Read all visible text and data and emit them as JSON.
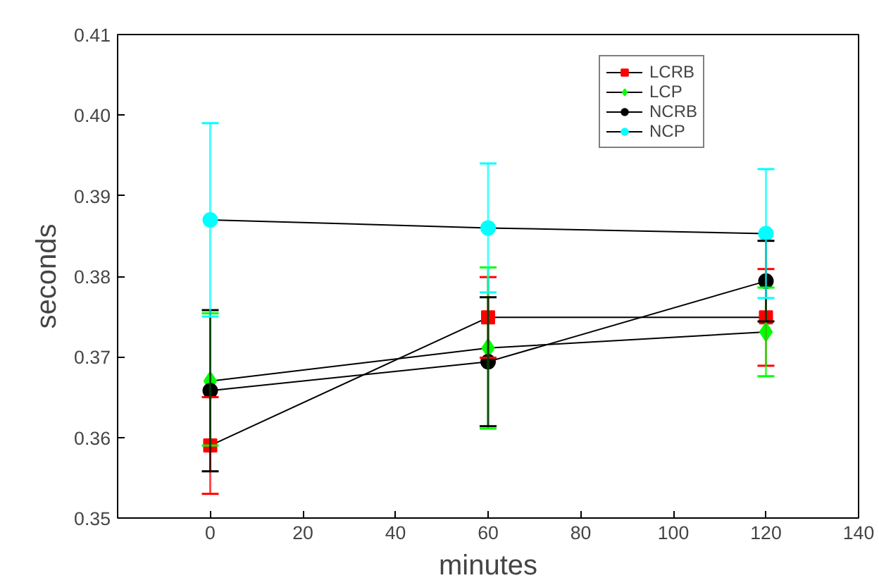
{
  "chart_data": {
    "type": "line",
    "xlabel": "minutes",
    "ylabel": "seconds",
    "x": [
      0,
      60,
      120
    ],
    "series": [
      {
        "name": "LCRB",
        "color": "#ff0000",
        "marker": "square",
        "values": [
          0.359,
          0.3749,
          0.3749
        ],
        "errors": [
          0.006,
          0.005,
          0.006
        ]
      },
      {
        "name": "LCP",
        "color": "#00ff00",
        "marker": "diamond",
        "values": [
          0.367,
          0.3711,
          0.3731
        ],
        "errors": [
          [
            0.359,
            0.3754
          ],
          0.01,
          0.0055
        ]
      },
      {
        "name": "NCRB",
        "color": "#000000",
        "marker": "circle",
        "values": [
          0.3658,
          0.3694,
          0.3794
        ],
        "errors": [
          0.01,
          0.008,
          0.005
        ]
      },
      {
        "name": "NCP",
        "color": "#00ffff",
        "marker": "circle",
        "values": [
          0.387,
          0.386,
          0.3853
        ],
        "errors": [
          0.012,
          0.008,
          0.008
        ]
      }
    ],
    "xlim": [
      -20,
      140
    ],
    "xticks": [
      0,
      20,
      40,
      60,
      80,
      100,
      120,
      140
    ],
    "ylim": [
      0.35,
      0.41
    ],
    "yticks": [
      {
        "value": 0.35,
        "label": "0.35"
      },
      {
        "value": 0.36,
        "label": "0.36"
      },
      {
        "value": 0.37,
        "label": "0.37"
      },
      {
        "value": 0.38,
        "label": "0.38"
      },
      {
        "value": 0.39,
        "label": "0.39"
      },
      {
        "value": 0.4,
        "label": "0.40"
      },
      {
        "value": 0.41,
        "label": "0.41"
      }
    ],
    "grid": false,
    "legend": "top right",
    "line_style": "solid"
  }
}
